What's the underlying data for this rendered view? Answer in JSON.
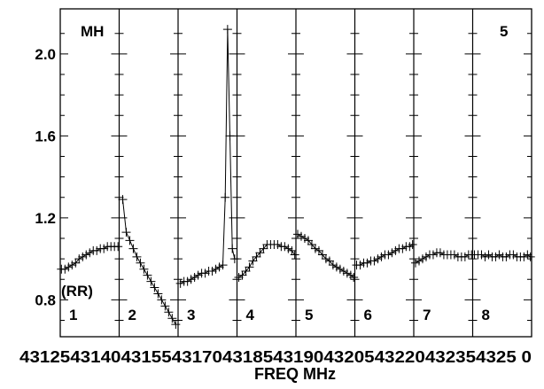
{
  "chart_data": {
    "type": "line",
    "marker": "plus",
    "title_tl": "MH",
    "title_tr": "5",
    "pol_label": "(RR)",
    "xlabel": "FREQ MHz",
    "ylim": [
      0.62,
      2.22
    ],
    "yticks": [
      0.8,
      1.2,
      1.6,
      2.0
    ],
    "ytick_labels": [
      "0.8",
      "1.2",
      "1.6",
      "2.0"
    ],
    "panel_x_range": [
      0,
      1
    ],
    "x_tick_labels_text": "4312543140431554317043185431904320543220432354325 0",
    "x_tick_labels": [
      "43125",
      "43140",
      "43155",
      "43170",
      "43185",
      "43190",
      "43205",
      "43220",
      "43235",
      "43250"
    ],
    "panels": [
      {
        "label": "1",
        "x": [
          0.02,
          0.08,
          0.14,
          0.2,
          0.26,
          0.32,
          0.38,
          0.44,
          0.5,
          0.56,
          0.62,
          0.68,
          0.74,
          0.8,
          0.86,
          0.92,
          0.98
        ],
        "y": [
          0.95,
          0.95,
          0.96,
          0.97,
          0.98,
          1.0,
          1.01,
          1.02,
          1.03,
          1.04,
          1.04,
          1.05,
          1.05,
          1.06,
          1.06,
          1.06,
          1.06
        ]
      },
      {
        "label": "2",
        "x": [
          0.06,
          0.12,
          0.18,
          0.24,
          0.3,
          0.36,
          0.42,
          0.48,
          0.54,
          0.6,
          0.66,
          0.72,
          0.78,
          0.84,
          0.9,
          0.96
        ],
        "y": [
          1.29,
          1.13,
          1.09,
          1.05,
          1.01,
          0.98,
          0.95,
          0.92,
          0.89,
          0.86,
          0.83,
          0.8,
          0.77,
          0.74,
          0.71,
          0.68
        ]
      },
      {
        "label": "3",
        "x": [
          0.04,
          0.1,
          0.16,
          0.22,
          0.28,
          0.34,
          0.4,
          0.46,
          0.52,
          0.58,
          0.64,
          0.7,
          0.76,
          0.8,
          0.84,
          0.88,
          0.92,
          0.96
        ],
        "y": [
          0.88,
          0.89,
          0.89,
          0.9,
          0.91,
          0.92,
          0.93,
          0.93,
          0.94,
          0.94,
          0.95,
          0.96,
          0.97,
          1.3,
          2.12,
          1.6,
          1.05,
          1.0
        ]
      },
      {
        "label": "4",
        "x": [
          0.03,
          0.09,
          0.15,
          0.21,
          0.27,
          0.33,
          0.39,
          0.45,
          0.51,
          0.57,
          0.63,
          0.69,
          0.75,
          0.81,
          0.87,
          0.93,
          0.98
        ],
        "y": [
          0.91,
          0.92,
          0.94,
          0.96,
          0.99,
          1.01,
          1.03,
          1.05,
          1.07,
          1.07,
          1.07,
          1.07,
          1.06,
          1.06,
          1.05,
          1.04,
          1.02
        ]
      },
      {
        "label": "5",
        "x": [
          0.03,
          0.09,
          0.15,
          0.21,
          0.27,
          0.33,
          0.39,
          0.45,
          0.51,
          0.57,
          0.63,
          0.69,
          0.75,
          0.81,
          0.87,
          0.93,
          0.98
        ],
        "y": [
          1.12,
          1.11,
          1.1,
          1.09,
          1.07,
          1.05,
          1.04,
          1.02,
          1.0,
          0.99,
          0.97,
          0.96,
          0.95,
          0.94,
          0.93,
          0.92,
          0.91
        ]
      },
      {
        "label": "6",
        "x": [
          0.03,
          0.09,
          0.15,
          0.21,
          0.27,
          0.33,
          0.39,
          0.45,
          0.51,
          0.57,
          0.63,
          0.69,
          0.75,
          0.81,
          0.87,
          0.93,
          0.98
        ],
        "y": [
          0.97,
          0.97,
          0.98,
          0.98,
          0.99,
          0.99,
          1.0,
          1.01,
          1.02,
          1.02,
          1.03,
          1.04,
          1.05,
          1.05,
          1.06,
          1.06,
          1.07
        ]
      },
      {
        "label": "7",
        "x": [
          0.03,
          0.09,
          0.15,
          0.21,
          0.27,
          0.33,
          0.39,
          0.45,
          0.51,
          0.57,
          0.63,
          0.69,
          0.75,
          0.81,
          0.87,
          0.93,
          0.98
        ],
        "y": [
          0.98,
          0.99,
          1.0,
          1.01,
          1.02,
          1.02,
          1.03,
          1.03,
          1.02,
          1.02,
          1.02,
          1.02,
          1.01,
          1.01,
          1.01,
          1.02,
          1.02
        ]
      },
      {
        "label": "8",
        "x": [
          0.03,
          0.09,
          0.15,
          0.21,
          0.27,
          0.33,
          0.39,
          0.45,
          0.51,
          0.57,
          0.63,
          0.69,
          0.75,
          0.81,
          0.87,
          0.93,
          0.98
        ],
        "y": [
          1.02,
          1.02,
          1.02,
          1.01,
          1.02,
          1.01,
          1.01,
          1.02,
          1.01,
          1.01,
          1.02,
          1.02,
          1.01,
          1.01,
          1.01,
          1.02,
          1.01
        ]
      }
    ]
  }
}
